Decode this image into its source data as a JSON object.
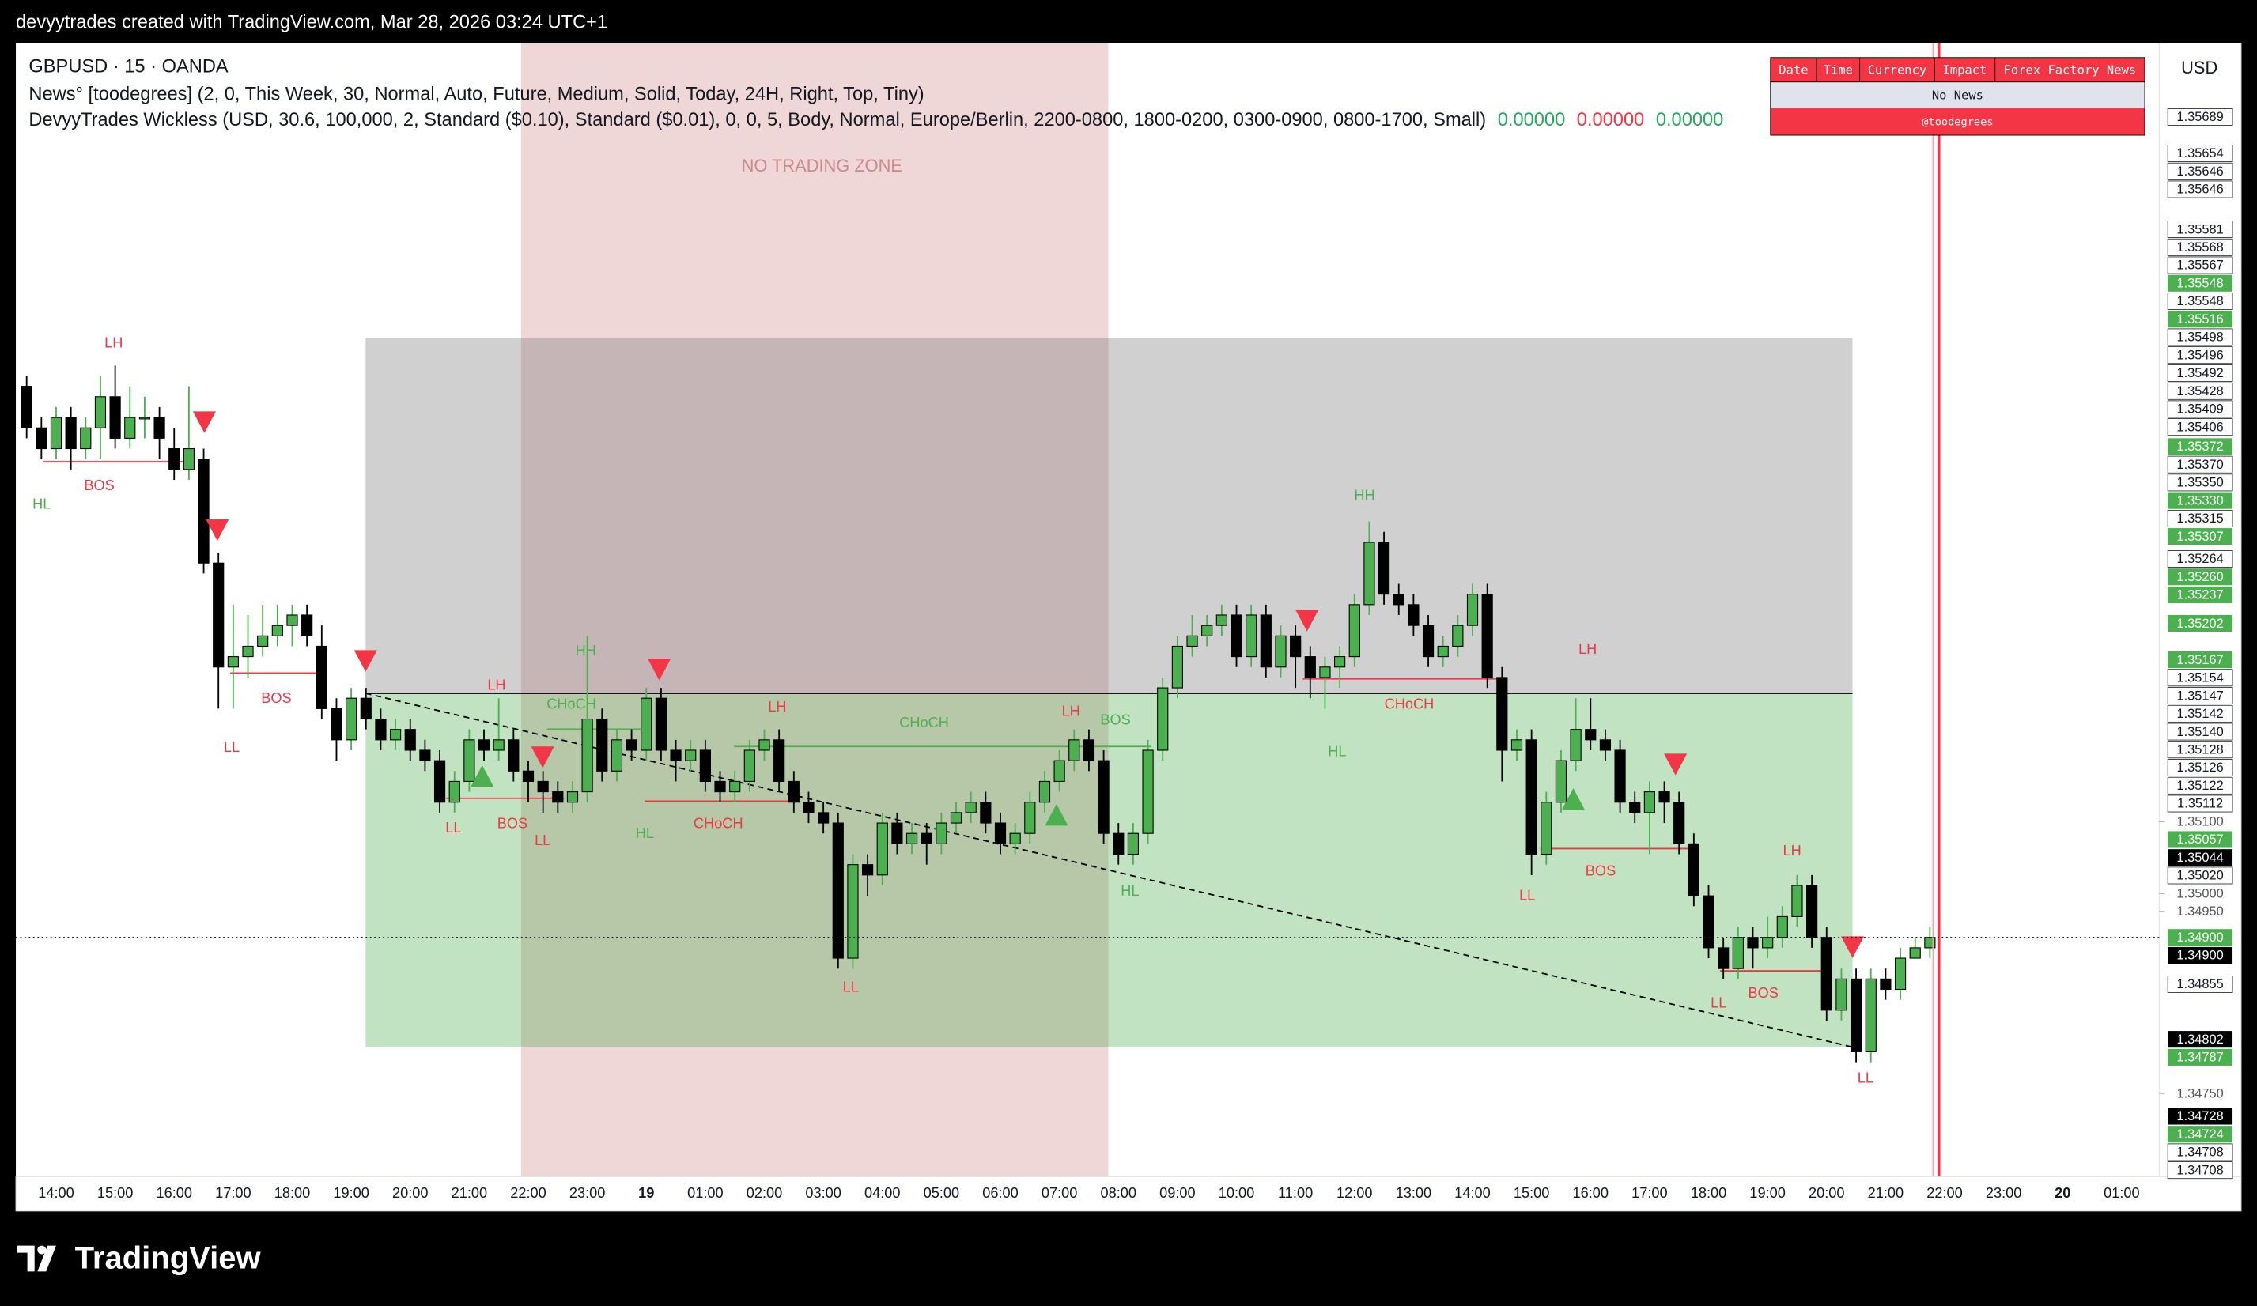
{
  "header": {
    "text": "devyytrades created with TradingView.com, Mar 28, 2026 03:24 UTC+1"
  },
  "legend": {
    "symbol": "GBPUSD · 15 · OANDA",
    "news": "News° [toodegrees] (2, 0, This Week, 30, Normal, Auto, Future, Medium, Solid, Today, 24H, Right, Top, Tiny)",
    "wickless": "DevyyTrades Wickless (USD, 30.6, 100,000, 2, Standard ($0.10), Standard ($0.01), 0, 0, 5, Body, Normal, Europe/Berlin, 2200-0800, 1800-0200, 0300-0900, 0800-1700, Small)",
    "values": [
      {
        "text": "0.00000",
        "color": "#22ab5a"
      },
      {
        "text": "0.00000",
        "color": "#f23645"
      },
      {
        "text": "0.00000",
        "color": "#22ab5a"
      }
    ]
  },
  "news_table": {
    "headers": [
      "Date",
      "Time",
      "Currency",
      "Impact",
      "Forex Factory News"
    ],
    "row": "No News",
    "credit": "@toodegrees"
  },
  "zone_label": "NO TRADING ZONE",
  "currency": "USD",
  "footer": "TradingView",
  "chart_data": {
    "type": "candlestick",
    "up_color": "#4caf50",
    "down_color": "#000000",
    "ylim": [
      1.3467,
      1.3576
    ],
    "time_labels": [
      "14:00",
      "15:00",
      "16:00",
      "17:00",
      "18:00",
      "19:00",
      "20:00",
      "21:00",
      "22:00",
      "23:00",
      "19",
      "01:00",
      "02:00",
      "03:00",
      "04:00",
      "05:00",
      "06:00",
      "07:00",
      "08:00",
      "09:00",
      "10:00",
      "11:00",
      "12:00",
      "13:00",
      "14:00",
      "15:00",
      "16:00",
      "17:00",
      "18:00",
      "19:00",
      "20:00",
      "21:00",
      "22:00",
      "23:00",
      "20",
      "01:00"
    ],
    "candles": {
      "open": [
        1.3543,
        1.3539,
        1.3537,
        1.354,
        1.3537,
        1.3539,
        1.3542,
        1.3538,
        1.354,
        1.354,
        1.3537,
        1.3535,
        1.3536,
        1.3526,
        1.3516,
        1.3517,
        1.3518,
        1.3519,
        1.352,
        1.3521,
        1.3518,
        1.3512,
        1.3509,
        1.3513,
        1.3511,
        1.3509,
        1.351,
        1.3508,
        1.3507,
        1.3503,
        1.3505,
        1.3509,
        1.3508,
        1.3509,
        1.3506,
        1.3505,
        1.3504,
        1.3503,
        1.3504,
        1.3511,
        1.3506,
        1.3509,
        1.3508,
        1.3513,
        1.3508,
        1.3507,
        1.3508,
        1.3505,
        1.3504,
        1.3505,
        1.3508,
        1.3509,
        1.3505,
        1.3503,
        1.3502,
        1.3501,
        1.3488,
        1.3497,
        1.3496,
        1.3501,
        1.3499,
        1.35,
        1.3499,
        1.3501,
        1.3502,
        1.3503,
        1.3501,
        1.3499,
        1.35,
        1.3503,
        1.3505,
        1.3507,
        1.3509,
        1.3507,
        1.35,
        1.3498,
        1.35,
        1.3508,
        1.3514,
        1.3518,
        1.3519,
        1.352,
        1.3521,
        1.3517,
        1.3521,
        1.3516,
        1.3519,
        1.3517,
        1.3515,
        1.3516,
        1.3517,
        1.3522,
        1.3528,
        1.3523,
        1.3522,
        1.352,
        1.3517,
        1.3518,
        1.352,
        1.3523,
        1.3515,
        1.3508,
        1.3509,
        1.3498,
        1.3503,
        1.3507,
        1.351,
        1.3509,
        1.3508,
        1.3503,
        1.3502,
        1.3504,
        1.3503,
        1.3499,
        1.3494,
        1.3489,
        1.3487,
        1.349,
        1.3489,
        1.349,
        1.3492,
        1.3495,
        1.349,
        1.3483,
        1.3486,
        1.3479,
        1.3486,
        1.3485,
        1.3488,
        1.3489
      ],
      "high": [
        1.3544,
        1.354,
        1.3541,
        1.3541,
        1.354,
        1.3544,
        1.3545,
        1.3543,
        1.3542,
        1.3541,
        1.3539,
        1.3543,
        1.3537,
        1.3527,
        1.3522,
        1.3521,
        1.3522,
        1.3522,
        1.3522,
        1.3522,
        1.352,
        1.3513,
        1.3514,
        1.3514,
        1.3512,
        1.3511,
        1.3511,
        1.3509,
        1.3508,
        1.3506,
        1.351,
        1.351,
        1.3513,
        1.351,
        1.3507,
        1.3506,
        1.3505,
        1.3505,
        1.3519,
        1.3512,
        1.351,
        1.351,
        1.3514,
        1.3514,
        1.3509,
        1.3509,
        1.3509,
        1.3506,
        1.3506,
        1.3509,
        1.351,
        1.351,
        1.3506,
        1.3504,
        1.3503,
        1.3502,
        1.3498,
        1.3498,
        1.3502,
        1.3502,
        1.3501,
        1.3501,
        1.3502,
        1.3503,
        1.3504,
        1.3504,
        1.3502,
        1.3501,
        1.3504,
        1.3506,
        1.3508,
        1.351,
        1.351,
        1.3508,
        1.3501,
        1.3501,
        1.3509,
        1.3515,
        1.3519,
        1.3521,
        1.3521,
        1.3522,
        1.3522,
        1.3522,
        1.3522,
        1.352,
        1.352,
        1.3518,
        1.3517,
        1.3518,
        1.3523,
        1.353,
        1.3529,
        1.3524,
        1.3523,
        1.3521,
        1.3519,
        1.3521,
        1.3524,
        1.3524,
        1.3516,
        1.351,
        1.351,
        1.3504,
        1.3508,
        1.3513,
        1.3513,
        1.351,
        1.3509,
        1.3504,
        1.3505,
        1.3505,
        1.3504,
        1.35,
        1.3495,
        1.349,
        1.3491,
        1.3491,
        1.3492,
        1.3493,
        1.3496,
        1.3496,
        1.3491,
        1.3487,
        1.3487,
        1.3487,
        1.3487,
        1.3489,
        1.349,
        1.3491
      ],
      "low": [
        1.3538,
        1.3536,
        1.3536,
        1.3535,
        1.3536,
        1.3536,
        1.3537,
        1.3537,
        1.3538,
        1.3536,
        1.3534,
        1.3534,
        1.3525,
        1.3512,
        1.3512,
        1.3515,
        1.3517,
        1.3518,
        1.3518,
        1.3518,
        1.3511,
        1.3507,
        1.3508,
        1.351,
        1.3508,
        1.3508,
        1.3507,
        1.3506,
        1.3502,
        1.3502,
        1.3504,
        1.3507,
        1.3507,
        1.3505,
        1.3503,
        1.3502,
        1.3502,
        1.3502,
        1.3503,
        1.3505,
        1.3505,
        1.3507,
        1.3507,
        1.3507,
        1.3505,
        1.3506,
        1.3504,
        1.3503,
        1.3503,
        1.3504,
        1.3507,
        1.3504,
        1.3502,
        1.3501,
        1.35,
        1.3487,
        1.3487,
        1.3494,
        1.3495,
        1.3498,
        1.3498,
        1.3497,
        1.3498,
        1.35,
        1.3501,
        1.35,
        1.3498,
        1.3498,
        1.3499,
        1.3502,
        1.3504,
        1.3506,
        1.3506,
        1.3499,
        1.3497,
        1.3497,
        1.3499,
        1.3507,
        1.3513,
        1.3517,
        1.3518,
        1.3519,
        1.3516,
        1.3516,
        1.3515,
        1.3515,
        1.3514,
        1.3513,
        1.3512,
        1.3514,
        1.3516,
        1.3521,
        1.3522,
        1.3521,
        1.3519,
        1.3516,
        1.3516,
        1.3517,
        1.3519,
        1.3514,
        1.3505,
        1.3507,
        1.3496,
        1.3497,
        1.3502,
        1.3506,
        1.3508,
        1.3507,
        1.3502,
        1.3501,
        1.3498,
        1.3501,
        1.3498,
        1.3493,
        1.3488,
        1.3486,
        1.3486,
        1.3487,
        1.3488,
        1.3489,
        1.3491,
        1.3489,
        1.3482,
        1.3482,
        1.3478,
        1.3478,
        1.3484,
        1.3484,
        1.3488,
        1.3488
      ],
      "close": [
        1.3539,
        1.3537,
        1.354,
        1.3537,
        1.3539,
        1.3542,
        1.3538,
        1.354,
        1.354,
        1.3538,
        1.3535,
        1.3537,
        1.3526,
        1.3516,
        1.3517,
        1.3518,
        1.3519,
        1.352,
        1.3521,
        1.3519,
        1.3512,
        1.3509,
        1.3513,
        1.3511,
        1.3509,
        1.351,
        1.3508,
        1.3507,
        1.3503,
        1.3505,
        1.3509,
        1.3508,
        1.3509,
        1.3506,
        1.3505,
        1.3504,
        1.3503,
        1.3504,
        1.3511,
        1.3506,
        1.3509,
        1.3508,
        1.3513,
        1.3508,
        1.3507,
        1.3508,
        1.3505,
        1.3504,
        1.3505,
        1.3508,
        1.3509,
        1.3505,
        1.3503,
        1.3502,
        1.3501,
        1.3488,
        1.3497,
        1.3496,
        1.3501,
        1.3499,
        1.35,
        1.3499,
        1.3501,
        1.3502,
        1.3503,
        1.3501,
        1.3499,
        1.35,
        1.3503,
        1.3505,
        1.3507,
        1.3509,
        1.3507,
        1.35,
        1.3498,
        1.35,
        1.3508,
        1.3514,
        1.3518,
        1.3519,
        1.352,
        1.3521,
        1.3517,
        1.3521,
        1.3516,
        1.3519,
        1.3517,
        1.3515,
        1.3516,
        1.3517,
        1.3522,
        1.3528,
        1.3523,
        1.3522,
        1.352,
        1.3517,
        1.3518,
        1.352,
        1.3523,
        1.3515,
        1.3508,
        1.3509,
        1.3498,
        1.3503,
        1.3507,
        1.351,
        1.3509,
        1.3508,
        1.3503,
        1.3502,
        1.3504,
        1.3503,
        1.3499,
        1.3494,
        1.3489,
        1.3487,
        1.349,
        1.3489,
        1.349,
        1.3492,
        1.3495,
        1.349,
        1.3483,
        1.3486,
        1.3479,
        1.3486,
        1.3485,
        1.3488,
        1.3489,
        1.349
      ]
    },
    "price_labels": [
      {
        "value": 1.35689,
        "label": "1.35689",
        "style": "box"
      },
      {
        "value": 1.35654,
        "label": "1.35654",
        "style": "box"
      },
      {
        "value": 1.35646,
        "label": "1.35646",
        "style": "box"
      },
      {
        "value": 1.35646,
        "label": "1.35646",
        "style": "box"
      },
      {
        "value": 1.35581,
        "label": "1.35581",
        "style": "box"
      },
      {
        "value": 1.35568,
        "label": "1.35568",
        "style": "box"
      },
      {
        "value": 1.35567,
        "label": "1.35567",
        "style": "box"
      },
      {
        "value": 1.35548,
        "label": "1.35548",
        "style": "green"
      },
      {
        "value": 1.35548,
        "label": "1.35548",
        "style": "box"
      },
      {
        "value": 1.35516,
        "label": "1.35516",
        "style": "green"
      },
      {
        "value": 1.35498,
        "label": "1.35498",
        "style": "box"
      },
      {
        "value": 1.35496,
        "label": "1.35496",
        "style": "box"
      },
      {
        "value": 1.35492,
        "label": "1.35492",
        "style": "box"
      },
      {
        "value": 1.35428,
        "label": "1.35428",
        "style": "box"
      },
      {
        "value": 1.35409,
        "label": "1.35409",
        "style": "box"
      },
      {
        "value": 1.35406,
        "label": "1.35406",
        "style": "box"
      },
      {
        "value": 1.35372,
        "label": "1.35372",
        "style": "green"
      },
      {
        "value": 1.3537,
        "label": "1.35370",
        "style": "box"
      },
      {
        "value": 1.3535,
        "label": "1.35350",
        "style": "box"
      },
      {
        "value": 1.3533,
        "label": "1.35330",
        "style": "green"
      },
      {
        "value": 1.35315,
        "label": "1.35315",
        "style": "box"
      },
      {
        "value": 1.35307,
        "label": "1.35307",
        "style": "green"
      },
      {
        "value": 1.35264,
        "label": "1.35264",
        "style": "box"
      },
      {
        "value": 1.3526,
        "label": "1.35260",
        "style": "green"
      },
      {
        "value": 1.35237,
        "label": "1.35237",
        "style": "green"
      },
      {
        "value": 1.35202,
        "label": "1.35202",
        "style": "green"
      },
      {
        "value": 1.35167,
        "label": "1.35167",
        "style": "green"
      },
      {
        "value": 1.35154,
        "label": "1.35154",
        "style": "box"
      },
      {
        "value": 1.35147,
        "label": "1.35147",
        "style": "box"
      },
      {
        "value": 1.35142,
        "label": "1.35142",
        "style": "box"
      },
      {
        "value": 1.3514,
        "label": "1.35140",
        "style": "box"
      },
      {
        "value": 1.35128,
        "label": "1.35128",
        "style": "box"
      },
      {
        "value": 1.35126,
        "label": "1.35126",
        "style": "box"
      },
      {
        "value": 1.35122,
        "label": "1.35122",
        "style": "box"
      },
      {
        "value": 1.35112,
        "label": "1.35112",
        "style": "box"
      },
      {
        "value": 1.351,
        "label": "1.35100",
        "style": "plain"
      },
      {
        "value": 1.35057,
        "label": "1.35057",
        "style": "green"
      },
      {
        "value": 1.35044,
        "label": "1.35044",
        "style": "black"
      },
      {
        "value": 1.3502,
        "label": "1.35020",
        "style": "box"
      },
      {
        "value": 1.35,
        "label": "1.35000",
        "style": "plain"
      },
      {
        "value": 1.3495,
        "label": "1.34950",
        "style": "plain"
      },
      {
        "value": 1.349,
        "label": "1.34900",
        "style": "green"
      },
      {
        "value": 1.349,
        "label": "1.34900",
        "style": "black"
      },
      {
        "value": 1.34855,
        "label": "1.34855",
        "style": "box"
      },
      {
        "value": 1.34802,
        "label": "1.34802",
        "style": "black"
      },
      {
        "value": 1.34787,
        "label": "1.34787",
        "style": "green"
      },
      {
        "value": 1.3475,
        "label": "1.34750",
        "style": "plain"
      },
      {
        "value": 1.34728,
        "label": "1.34728",
        "style": "black"
      },
      {
        "value": 1.34724,
        "label": "1.34724",
        "style": "green"
      },
      {
        "value": 1.34708,
        "label": "1.34708",
        "style": "box"
      },
      {
        "value": 1.34708,
        "label": "1.34708",
        "style": "box"
      }
    ],
    "annotations": [
      {
        "text": "LH",
        "color": "#f23645"
      },
      {
        "text": "HL",
        "color": "#4caf50"
      },
      {
        "text": "BOS",
        "color": "#f23645"
      },
      {
        "text": "BOS",
        "color": "#f23645"
      },
      {
        "text": "LL",
        "color": "#f23645"
      },
      {
        "text": "LH",
        "color": "#f23645"
      },
      {
        "text": "HH",
        "color": "#4caf50"
      },
      {
        "text": "CHoCH",
        "color": "#4caf50"
      },
      {
        "text": "LL",
        "color": "#f23645"
      },
      {
        "text": "BOS",
        "color": "#f23645"
      },
      {
        "text": "LL",
        "color": "#f23645"
      },
      {
        "text": "HL",
        "color": "#4caf50"
      },
      {
        "text": "CHoCH",
        "color": "#f23645"
      },
      {
        "text": "LH",
        "color": "#f23645"
      },
      {
        "text": "CHoCH",
        "color": "#4caf50"
      },
      {
        "text": "LH",
        "color": "#f23645"
      },
      {
        "text": "BOS",
        "color": "#4caf50"
      },
      {
        "text": "LL",
        "color": "#f23645"
      },
      {
        "text": "HL",
        "color": "#4caf50"
      },
      {
        "text": "HH",
        "color": "#4caf50"
      },
      {
        "text": "HL",
        "color": "#4caf50"
      },
      {
        "text": "CHoCH",
        "color": "#f23645"
      },
      {
        "text": "LH",
        "color": "#f23645"
      },
      {
        "text": "LL",
        "color": "#f23645"
      },
      {
        "text": "BOS",
        "color": "#f23645"
      },
      {
        "text": "LH",
        "color": "#f23645"
      },
      {
        "text": "BOS",
        "color": "#f23645"
      },
      {
        "text": "LL",
        "color": "#f23645"
      },
      {
        "text": "LL",
        "color": "#f23645"
      }
    ]
  }
}
